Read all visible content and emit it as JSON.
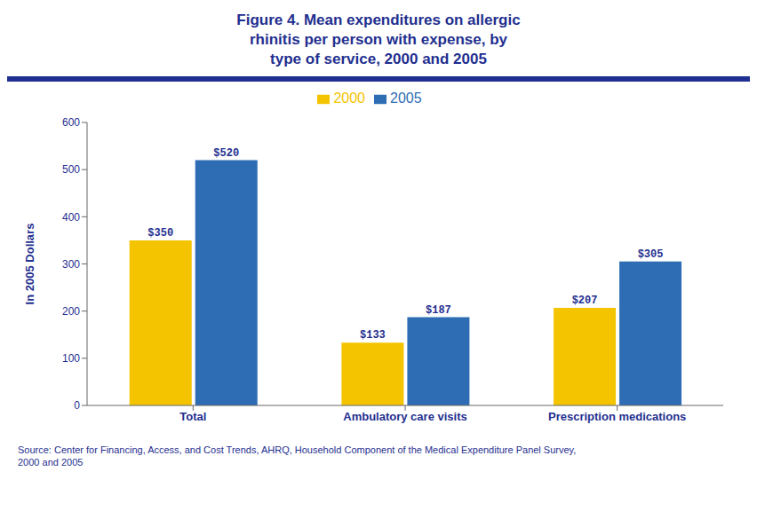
{
  "chart_data": {
    "type": "bar",
    "title": "Figure 4. Mean expenditures on allergic\nrhinitis per person with expense, by\ntype of service, 2000 and 2005",
    "source": "Source: Center for Financing, Access, and Cost Trends, AHRQ, Household Component of the Medical Expenditure Panel Survey,\n2000 and 2005",
    "categories": [
      "Total",
      "Ambulatory care visits",
      "Prescription medications"
    ],
    "series": [
      {
        "name": "2000",
        "color": "#F5C400",
        "values": [
          350,
          133,
          207
        ],
        "value_labels": [
          "$350",
          "$133",
          "$207"
        ]
      },
      {
        "name": "2005",
        "color": "#2E6DB4",
        "values": [
          520,
          187,
          305
        ],
        "value_labels": [
          "$520",
          "$187",
          "$305"
        ]
      }
    ],
    "ylabel": "In 2005 Dollars",
    "ylim": [
      0,
      600
    ],
    "yticks": [
      0,
      100,
      200,
      300,
      400,
      500,
      600
    ],
    "grid": false,
    "legend": "top",
    "data_labels": true
  }
}
